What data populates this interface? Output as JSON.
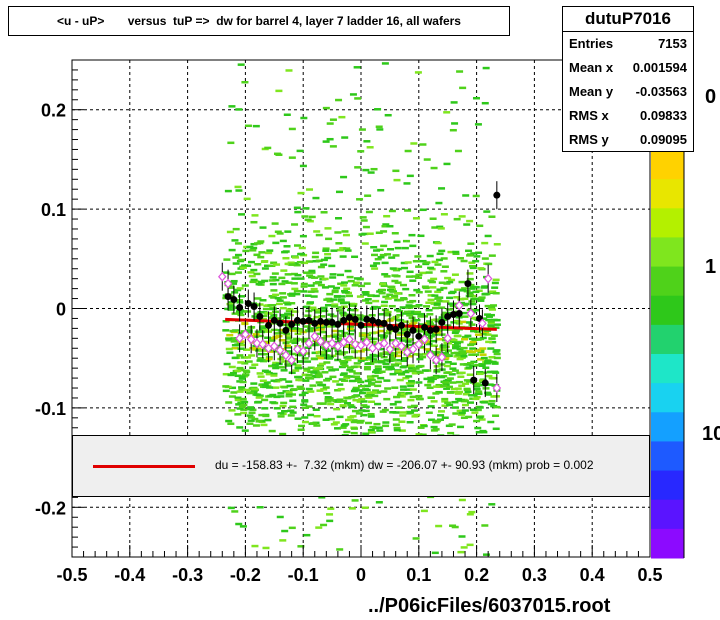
{
  "title": "<u - uP>       versus  tuP =>  dw for barrel 4, layer 7 ladder 16, all wafers",
  "stats": {
    "name": "dutuP7016",
    "rows": [
      {
        "label": "Entries",
        "value": "7153"
      },
      {
        "label": "Mean x",
        "value": "0.001594"
      },
      {
        "label": "Mean y",
        "value": "-0.03563"
      },
      {
        "label": "RMS x",
        "value": "0.09833"
      },
      {
        "label": "RMS y",
        "value": "0.09095"
      }
    ]
  },
  "legend": {
    "text": "du = -158.83 +-  7.32 (mkm) dw = -206.07 +- 90.93 (mkm) prob = 0.002",
    "line_color": "#e00000"
  },
  "footer": "../P06icFiles/6037015.root",
  "colors": {
    "fit_line": "#e00000",
    "profile_black": "#000000",
    "profile_magenta": "#dd55dd"
  },
  "chart_data": {
    "type": "scatter",
    "xlim": [
      -0.5,
      0.5
    ],
    "ylim": [
      -0.25,
      0.25
    ],
    "x_ticks": [
      -0.5,
      -0.4,
      -0.3,
      -0.2,
      -0.1,
      0,
      0.1,
      0.2,
      0.3,
      0.4,
      0.5
    ],
    "x_tick_labels": [
      "-0.5",
      "-0.4",
      "-0.3",
      "-0.2",
      "-0.1",
      "0",
      "0.1",
      "0.2",
      "0.3",
      "0.4",
      "0.5"
    ],
    "y_ticks": [
      -0.2,
      -0.1,
      0,
      0.1,
      0.2
    ],
    "y_tick_labels": [
      "-0.2",
      "-0.1",
      "0",
      "0.1",
      "0.2"
    ],
    "grid": true,
    "colorbar_labels": [
      "0",
      "1",
      "10"
    ],
    "fit_line": {
      "x": [
        -0.235,
        0.235
      ],
      "y": [
        -0.011,
        -0.021
      ]
    },
    "series": [
      {
        "marker": "filled-circle",
        "x": [
          -0.23,
          -0.22,
          -0.21,
          -0.195,
          -0.185,
          -0.175,
          -0.16,
          -0.15,
          -0.14,
          -0.13,
          -0.12,
          -0.11,
          -0.1,
          -0.09,
          -0.08,
          -0.07,
          -0.06,
          -0.05,
          -0.04,
          -0.03,
          -0.02,
          -0.01,
          0.0,
          0.01,
          0.02,
          0.03,
          0.04,
          0.05,
          0.06,
          0.07,
          0.08,
          0.09,
          0.1,
          0.11,
          0.12,
          0.13,
          0.14,
          0.15,
          0.16,
          0.17,
          0.185,
          0.195,
          0.205,
          0.215,
          0.235
        ],
        "y": [
          0.012,
          0.009,
          0.001,
          0.005,
          0.002,
          -0.008,
          -0.017,
          -0.012,
          -0.015,
          -0.022,
          -0.016,
          -0.012,
          -0.013,
          -0.012,
          -0.015,
          -0.013,
          -0.014,
          -0.014,
          -0.016,
          -0.012,
          -0.009,
          -0.011,
          -0.017,
          -0.011,
          -0.012,
          -0.014,
          -0.015,
          -0.019,
          -0.021,
          -0.017,
          -0.026,
          -0.022,
          -0.028,
          -0.019,
          -0.022,
          -0.021,
          -0.014,
          -0.008,
          -0.006,
          -0.005,
          0.025,
          -0.072,
          -0.01,
          -0.075,
          0.114
        ]
      },
      {
        "marker": "open-diamond",
        "x": [
          -0.24,
          -0.23,
          -0.21,
          -0.2,
          -0.19,
          -0.18,
          -0.17,
          -0.16,
          -0.15,
          -0.14,
          -0.13,
          -0.12,
          -0.11,
          -0.1,
          -0.09,
          -0.08,
          -0.07,
          -0.06,
          -0.05,
          -0.04,
          -0.03,
          -0.02,
          -0.01,
          0.0,
          0.01,
          0.02,
          0.03,
          0.04,
          0.05,
          0.06,
          0.07,
          0.08,
          0.09,
          0.1,
          0.11,
          0.12,
          0.13,
          0.14,
          0.15,
          0.17,
          0.19,
          0.21,
          0.22,
          0.235
        ],
        "y": [
          0.032,
          0.025,
          -0.03,
          -0.026,
          -0.031,
          -0.035,
          -0.036,
          -0.04,
          -0.038,
          -0.042,
          -0.047,
          -0.052,
          -0.041,
          -0.043,
          -0.035,
          -0.028,
          -0.033,
          -0.037,
          -0.035,
          -0.038,
          -0.034,
          -0.031,
          -0.036,
          -0.037,
          -0.034,
          -0.04,
          -0.038,
          -0.035,
          -0.041,
          -0.035,
          -0.038,
          -0.044,
          -0.041,
          -0.036,
          -0.031,
          -0.047,
          -0.052,
          -0.049,
          -0.03,
          0.003,
          -0.005,
          -0.015,
          0.03,
          -0.08
        ]
      }
    ]
  }
}
